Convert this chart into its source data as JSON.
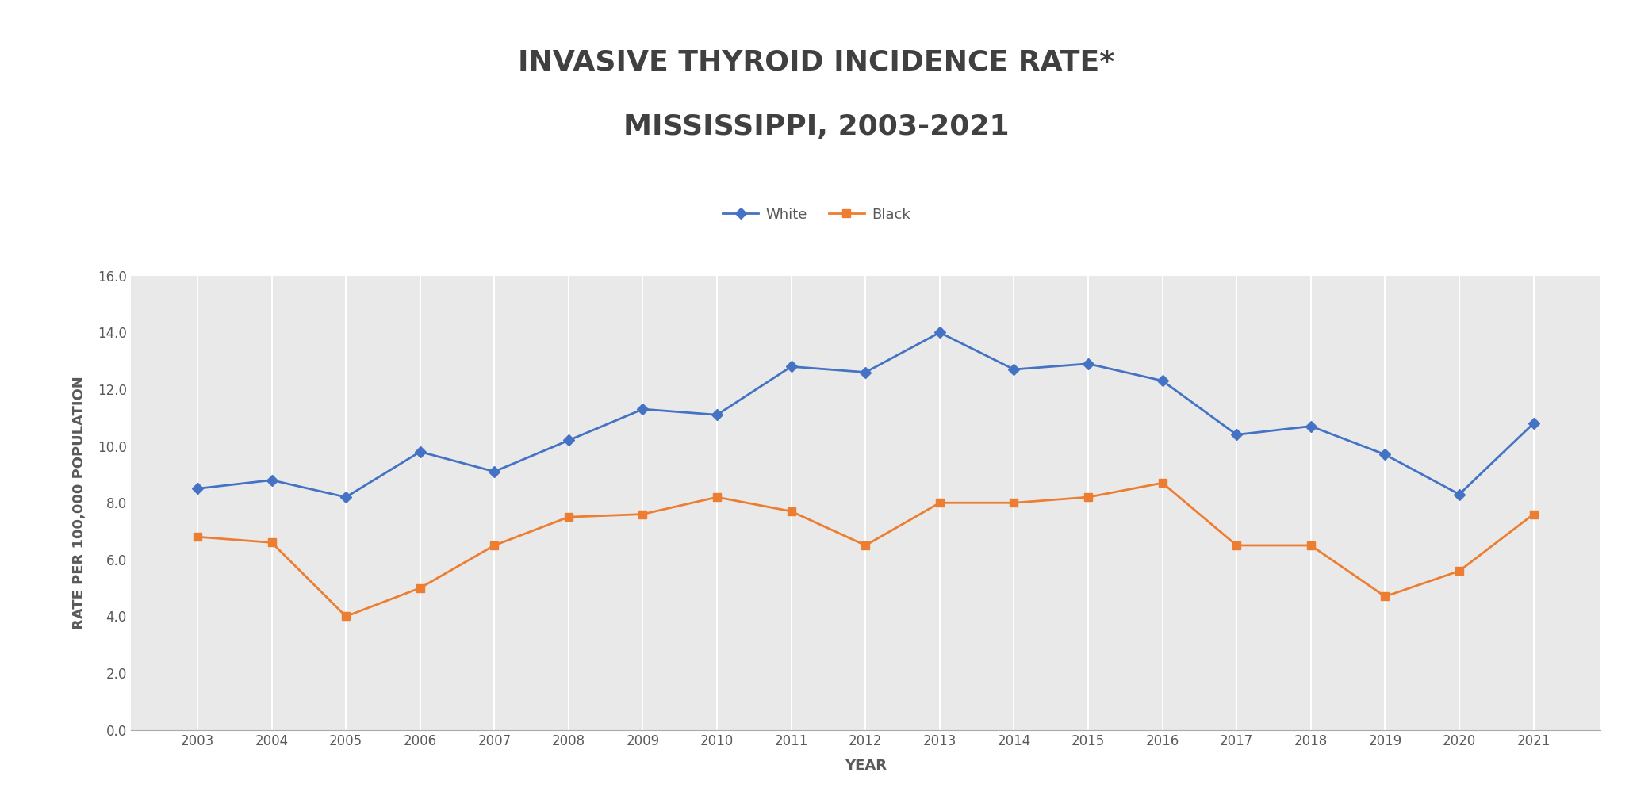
{
  "title_line1": "INVASIVE THYROID INCIDENCE RATE*",
  "title_line2": "MISSISSIPPI, 2003-2021",
  "xlabel": "YEAR",
  "ylabel": "RATE PER 100,000 POPULATION",
  "years": [
    2003,
    2004,
    2005,
    2006,
    2007,
    2008,
    2009,
    2010,
    2011,
    2012,
    2013,
    2014,
    2015,
    2016,
    2017,
    2018,
    2019,
    2020,
    2021
  ],
  "white": [
    8.5,
    8.8,
    8.2,
    9.8,
    9.1,
    10.2,
    11.3,
    11.1,
    12.8,
    12.6,
    14.0,
    12.7,
    12.9,
    12.3,
    10.4,
    10.7,
    9.7,
    8.3,
    10.8
  ],
  "black": [
    6.8,
    6.6,
    4.0,
    5.0,
    6.5,
    7.5,
    7.6,
    8.2,
    7.7,
    6.5,
    8.0,
    8.0,
    8.2,
    8.7,
    6.5,
    6.5,
    4.7,
    5.6,
    7.6
  ],
  "white_color": "#4472C4",
  "black_color": "#ED7D31",
  "ylim": [
    0,
    16.0
  ],
  "yticks": [
    0.0,
    2.0,
    4.0,
    6.0,
    8.0,
    10.0,
    12.0,
    14.0,
    16.0
  ],
  "background_color": "#FFFFFF",
  "plot_bg_color": "#E9E9E9",
  "grid_color": "#FFFFFF",
  "title_fontsize": 26,
  "axis_label_fontsize": 13,
  "tick_fontsize": 12,
  "legend_fontsize": 13,
  "title_color": "#404040",
  "tick_color": "#595959"
}
